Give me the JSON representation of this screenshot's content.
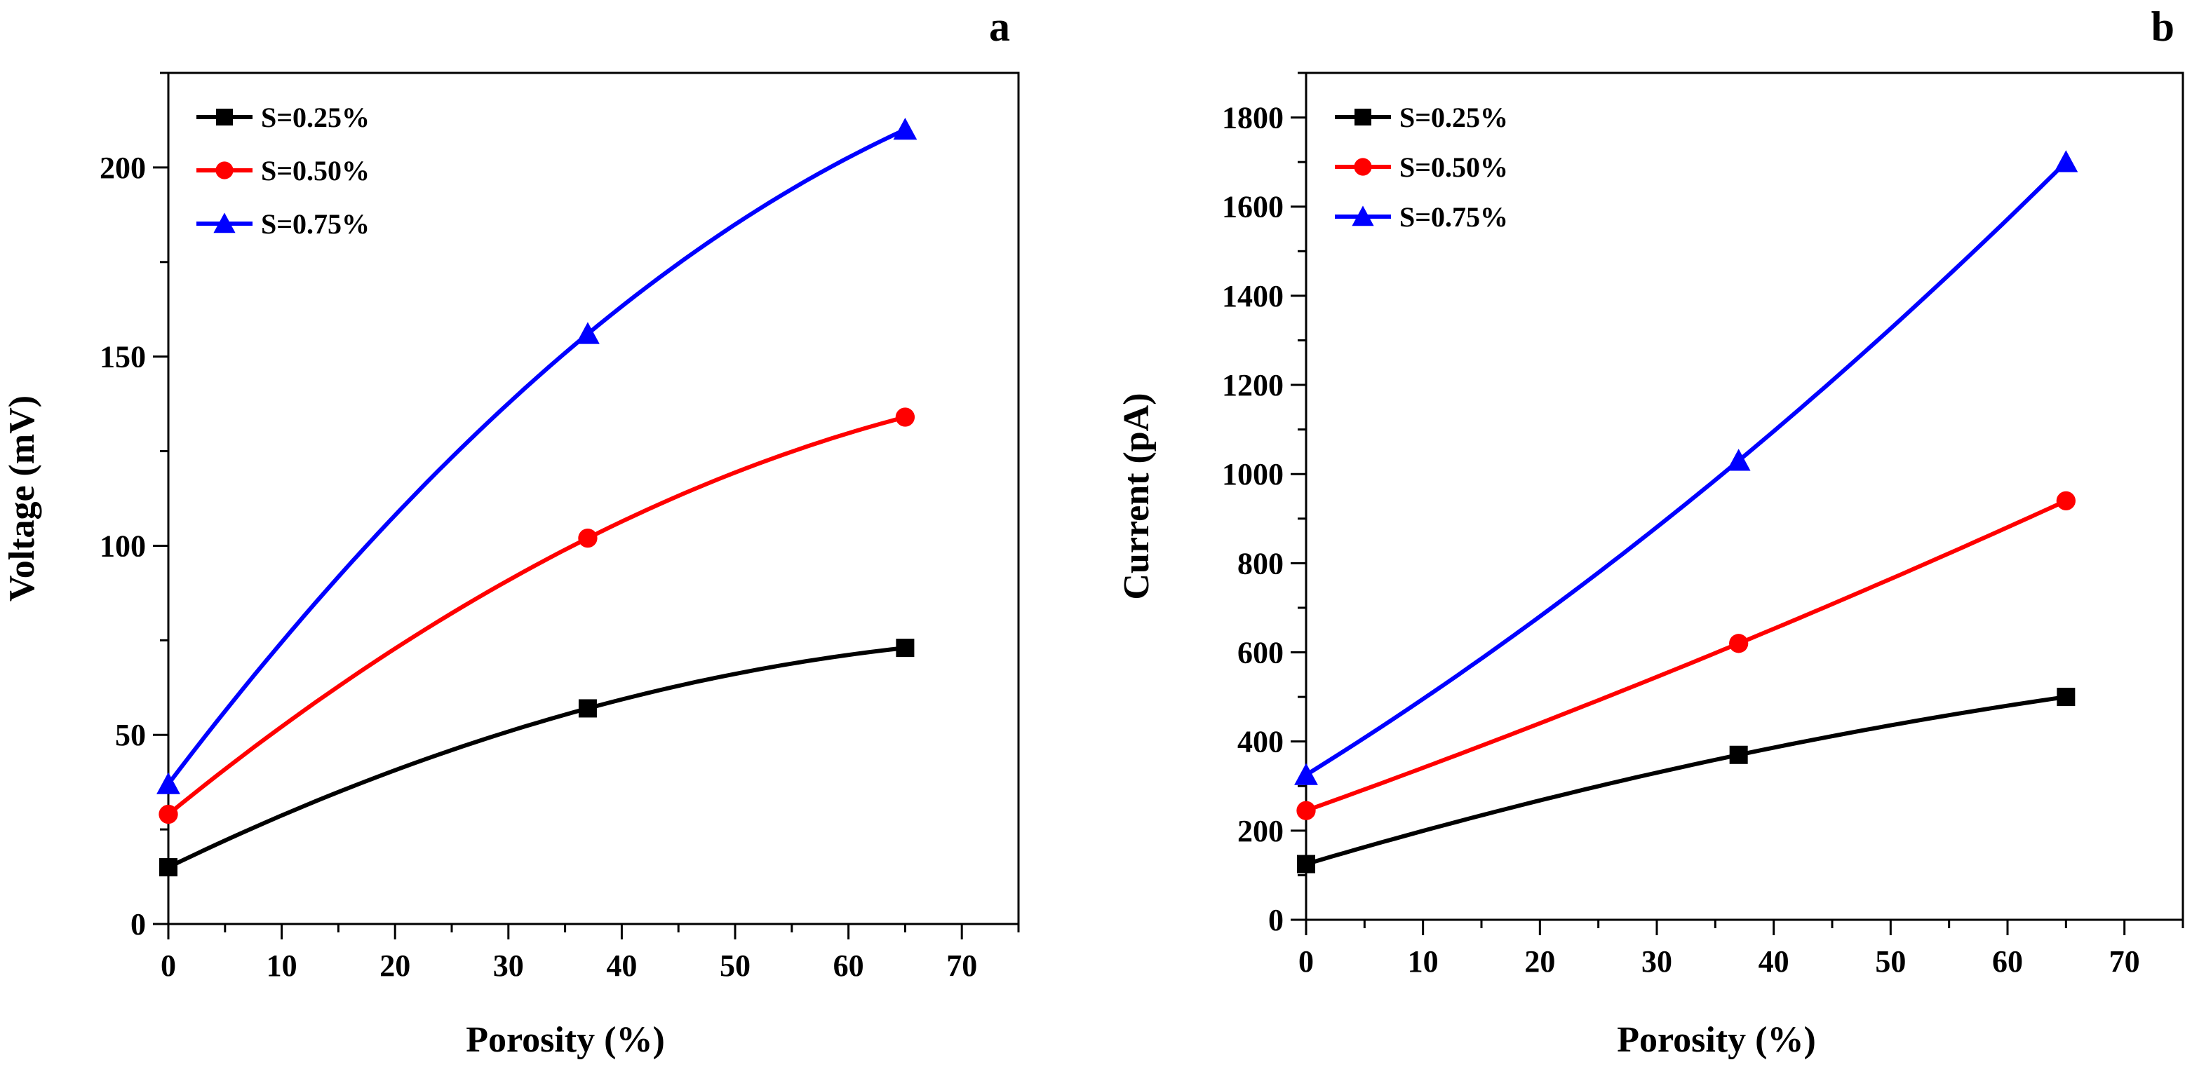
{
  "chart_data": [
    {
      "type": "line",
      "panel_label": "a",
      "xlabel": "Porosity (%)",
      "ylabel": "Voltage  (mV)",
      "xlim": [
        0,
        75
      ],
      "ylim": [
        0,
        225
      ],
      "xticks": [
        0,
        10,
        20,
        30,
        40,
        50,
        60,
        70
      ],
      "yticks": [
        0,
        50,
        100,
        150,
        200
      ],
      "legend_position": "top-left",
      "series": [
        {
          "name": "S=0.25%",
          "color": "#000000",
          "marker": "square",
          "x": [
            0,
            37,
            65
          ],
          "values": [
            15,
            57,
            73
          ]
        },
        {
          "name": "S=0.50%",
          "color": "#ff0000",
          "marker": "circle",
          "x": [
            0,
            37,
            65
          ],
          "values": [
            29,
            102,
            134
          ]
        },
        {
          "name": "S=0.75%",
          "color": "#0000ff",
          "marker": "triangle",
          "x": [
            0,
            37,
            65
          ],
          "values": [
            37,
            156,
            210
          ]
        }
      ]
    },
    {
      "type": "line",
      "panel_label": "b",
      "xlabel": "Porosity (%)",
      "ylabel": "Current  (pA)",
      "xlim": [
        0,
        75
      ],
      "ylim": [
        0,
        1900
      ],
      "xticks": [
        0,
        10,
        20,
        30,
        40,
        50,
        60,
        70
      ],
      "yticks": [
        0,
        200,
        400,
        600,
        800,
        1000,
        1200,
        1400,
        1600,
        1800
      ],
      "legend_position": "top-left",
      "series": [
        {
          "name": "S=0.25%",
          "color": "#000000",
          "marker": "square",
          "x": [
            0,
            37,
            65
          ],
          "values": [
            125,
            370,
            500
          ]
        },
        {
          "name": "S=0.50%",
          "color": "#ff0000",
          "marker": "circle",
          "x": [
            0,
            37,
            65
          ],
          "values": [
            245,
            620,
            940
          ]
        },
        {
          "name": "S=0.75%",
          "color": "#0000ff",
          "marker": "triangle",
          "x": [
            0,
            37,
            65
          ],
          "values": [
            325,
            1030,
            1700
          ]
        }
      ]
    }
  ]
}
